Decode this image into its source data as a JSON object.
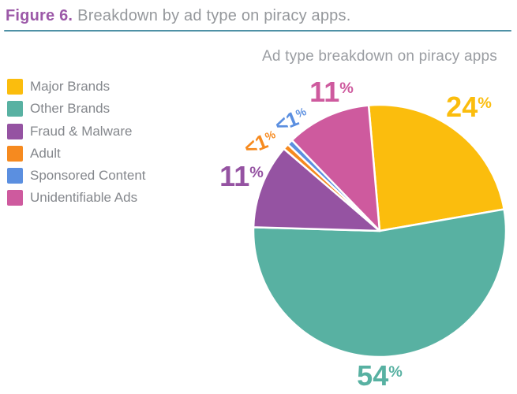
{
  "figure": {
    "label": "Figure 6.",
    "caption": "Breakdown by ad type on piracy apps."
  },
  "colors": {
    "figure_label": "#9C59A8",
    "divider": "#4E91A6"
  },
  "chart_data": {
    "type": "pie",
    "title": "Ad type breakdown on piracy apps",
    "legend_position": "left",
    "start_angle_deg": -5,
    "percent_sign": "%",
    "slices": [
      {
        "name": "Major Brands",
        "label": "24%",
        "value_display": "24",
        "weight": 24,
        "color": "#FBBD0D"
      },
      {
        "name": "Other Brands",
        "label": "54%",
        "value_display": "54",
        "weight": 54,
        "color": "#58B1A2"
      },
      {
        "name": "Fraud & Malware",
        "label": "11%",
        "value_display": "11",
        "weight": 11,
        "color": "#9553A2"
      },
      {
        "name": "Adult",
        "label": "<1%",
        "value_display": "<1",
        "weight": 0.75,
        "color": "#F68A1F"
      },
      {
        "name": "Sponsored Content",
        "label": "<1%",
        "value_display": "<1",
        "weight": 0.75,
        "color": "#5B8FE0"
      },
      {
        "name": "Unidentifiable Ads",
        "label": "11%",
        "value_display": "11",
        "weight": 11,
        "color": "#CE5A9E"
      }
    ]
  }
}
